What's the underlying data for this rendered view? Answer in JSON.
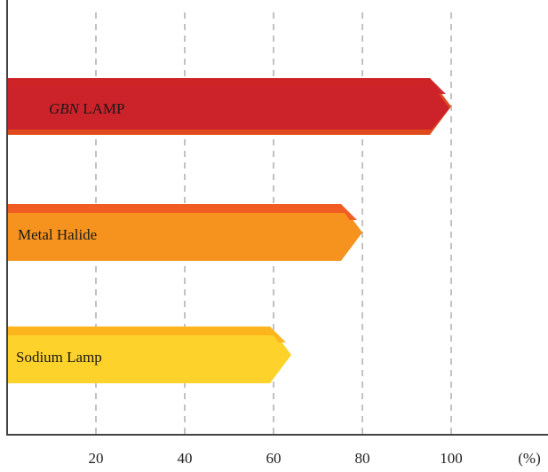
{
  "chart_data": {
    "type": "bar",
    "orientation": "horizontal",
    "categories": [
      "GBN LAMP",
      "Metal Halide",
      "Sodium Lamp"
    ],
    "category_label_parts": [
      {
        "italic": "GBN",
        "plain": " LAMP"
      },
      {
        "italic": "",
        "plain": "Metal Halide"
      },
      {
        "italic": "",
        "plain": "Sodium Lamp"
      }
    ],
    "values": [
      100,
      80,
      64
    ],
    "xlim": [
      0,
      115
    ],
    "xticks": [
      20,
      40,
      60,
      80,
      100
    ],
    "xtick_labels": [
      "20",
      "40",
      "60",
      "80",
      "100"
    ],
    "x_unit_label": "(%)",
    "grid": "vertical dashed",
    "legend": "none",
    "title": "",
    "xlabel": "",
    "ylabel": "",
    "colors": {
      "GBN LAMP": [
        "#cc2229",
        "#e04a1c"
      ],
      "Metal Halide": [
        "#ef5a22",
        "#f6921e"
      ],
      "Sodium Lamp": [
        "#fcb31c",
        "#fdd22a"
      ],
      "axis": "#444444",
      "grid": "#9a9a9a"
    }
  }
}
